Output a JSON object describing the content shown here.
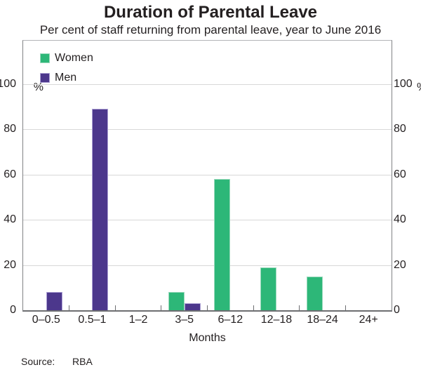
{
  "chart_data": {
    "type": "bar",
    "title": "Duration of Parental Leave",
    "subtitle": "Per cent of staff returning from parental leave, year to June 2016",
    "categories": [
      "0–0.5",
      "0.5–1",
      "1–2",
      "3–5",
      "6–12",
      "12–18",
      "18–24",
      "24+"
    ],
    "xlabel": "Months",
    "unit_left": "%",
    "unit_right": "%",
    "yticks": [
      0,
      20,
      40,
      60,
      80,
      100
    ],
    "ylim": [
      0,
      119
    ],
    "grid": true,
    "legend_position": "top-left",
    "series": [
      {
        "name": "Women",
        "color": "#2db778",
        "border_color": "#9bd9bc",
        "values": [
          0,
          0,
          0,
          8,
          58,
          19,
          15,
          0
        ]
      },
      {
        "name": "Men",
        "color": "#4c378c",
        "border_color": "#aca0d4",
        "values": [
          8,
          89,
          0,
          3,
          0,
          0,
          0,
          0
        ]
      }
    ]
  },
  "footer": {
    "source_label": "Source:",
    "source_value": "RBA"
  },
  "colors": {
    "grid": "#d8d8d8",
    "axis": "#6d6e71",
    "plot_border": "#808285",
    "text": "#231f20"
  }
}
